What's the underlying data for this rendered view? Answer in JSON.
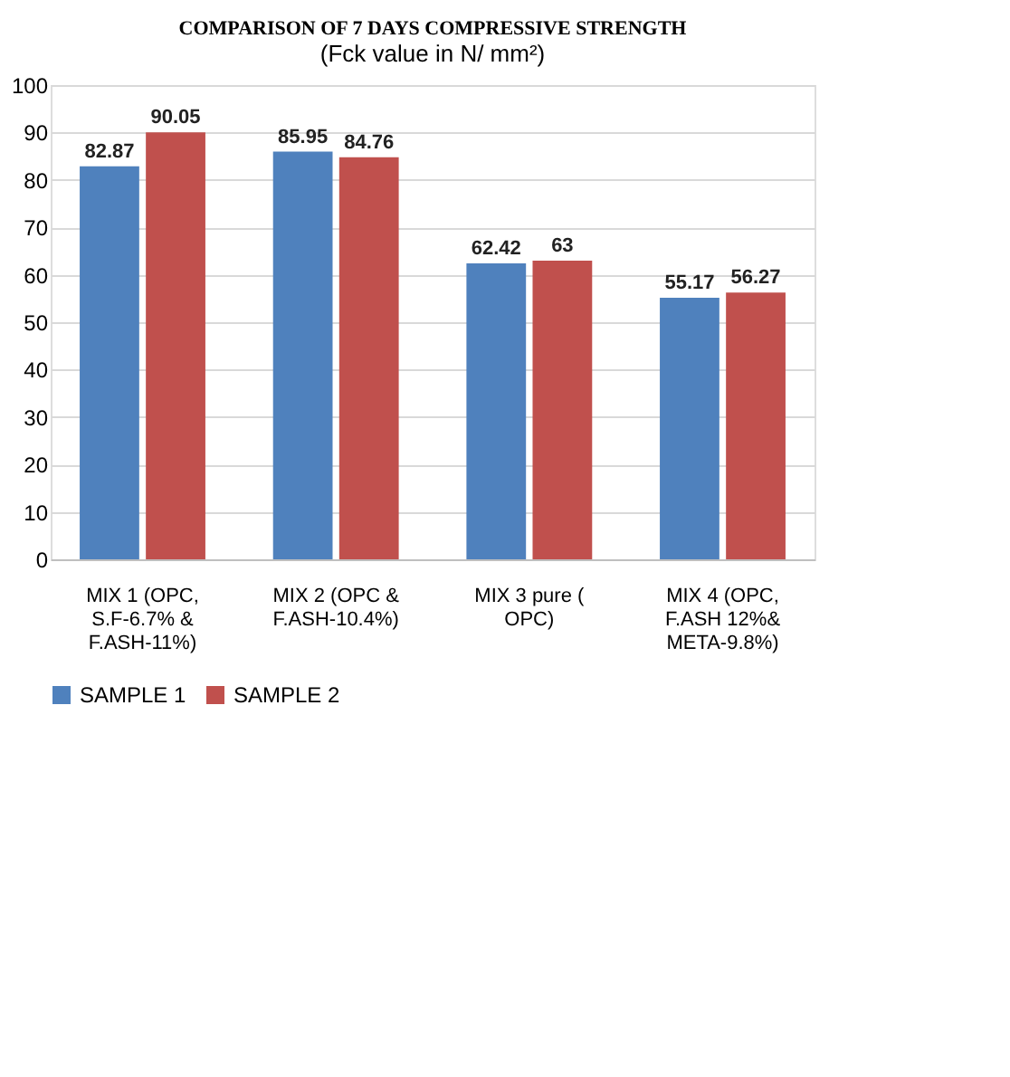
{
  "chart_data": {
    "type": "bar",
    "title": "COMPARISON OF 7 DAYS COMPRESSIVE STRENGTH",
    "subtitle": "(Fck  value in N/ mm²)",
    "categories": [
      "MIX 1 (OPC, S.F-6.7% & F.ASH-11%)",
      "MIX 2 (OPC & F.ASH-10.4%)",
      "MIX 3 pure ( OPC)",
      "MIX 4 (OPC, F.ASH 12%& META-9.8%)"
    ],
    "series": [
      {
        "name": "SAMPLE 1",
        "color": "#4f81bd",
        "values": [
          82.87,
          85.95,
          62.42,
          55.17
        ]
      },
      {
        "name": "SAMPLE 2",
        "color": "#c0504d",
        "values": [
          90.05,
          84.76,
          63,
          56.27
        ]
      }
    ],
    "ylim": [
      0,
      100
    ],
    "yticks": [
      0,
      10,
      20,
      30,
      40,
      50,
      60,
      70,
      80,
      90,
      100
    ],
    "grid": "y",
    "legend": "bottom",
    "data_labels": true
  }
}
